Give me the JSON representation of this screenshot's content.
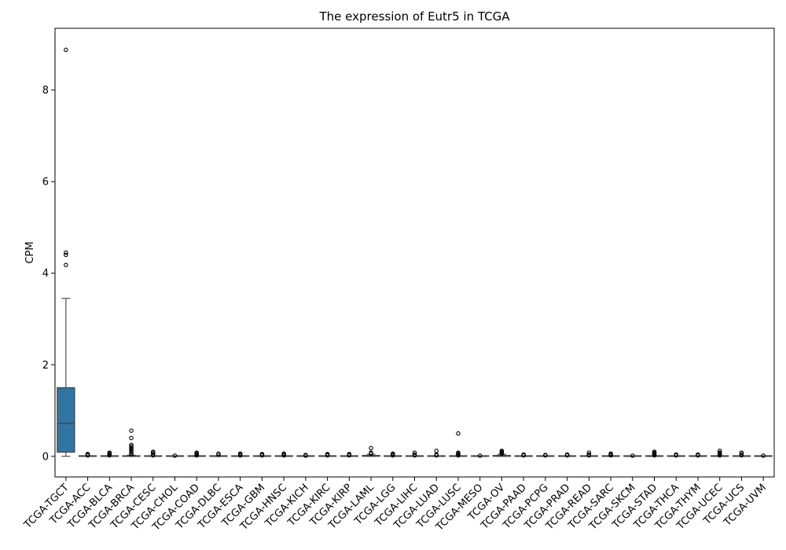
{
  "chart_data": {
    "type": "box",
    "title": "The expression of Eutr5 in TCGA",
    "xlabel": "",
    "ylabel": "CPM",
    "ylim": [
      -0.45,
      9.35
    ],
    "yticks": [
      0,
      2,
      4,
      6,
      8
    ],
    "grid": false,
    "box_color": "#3274a1",
    "categories": [
      "TCGA-TGCT",
      "TCGA-ACC",
      "TCGA-BLCA",
      "TCGA-BRCA",
      "TCGA-CESC",
      "TCGA-CHOL",
      "TCGA-COAD",
      "TCGA-DLBC",
      "TCGA-ESCA",
      "TCGA-GBM",
      "TCGA-HNSC",
      "TCGA-KICH",
      "TCGA-KIRC",
      "TCGA-KIRP",
      "TCGA-LAML",
      "TCGA-LGG",
      "TCGA-LIHC",
      "TCGA-LUAD",
      "TCGA-LUSC",
      "TCGA-MESO",
      "TCGA-OV",
      "TCGA-PAAD",
      "TCGA-PCPG",
      "TCGA-PRAD",
      "TCGA-READ",
      "TCGA-SARC",
      "TCGA-SKCM",
      "TCGA-STAD",
      "TCGA-THCA",
      "TCGA-THYM",
      "TCGA-UCEC",
      "TCGA-UCS",
      "TCGA-UVM"
    ],
    "boxes": [
      {
        "whislo": 0.0,
        "q1": 0.09,
        "med": 0.72,
        "q3": 1.5,
        "whishi": 3.45,
        "fliers": [
          4.18,
          4.4,
          4.45,
          8.88
        ]
      },
      {
        "whislo": 0.0,
        "q1": 0.0,
        "med": 0.0,
        "q3": 0.005,
        "whishi": 0.012,
        "fliers": [
          0.02,
          0.03,
          0.04,
          0.05
        ]
      },
      {
        "whislo": 0.0,
        "q1": 0.0,
        "med": 0.0,
        "q3": 0.005,
        "whishi": 0.012,
        "fliers": [
          0.02,
          0.04,
          0.06,
          0.08
        ]
      },
      {
        "whislo": 0.0,
        "q1": 0.0,
        "med": 0.0,
        "q3": 0.01,
        "whishi": 0.025,
        "fliers": [
          0.04,
          0.07,
          0.1,
          0.13,
          0.16,
          0.19,
          0.22,
          0.25,
          0.4,
          0.56
        ]
      },
      {
        "whislo": 0.0,
        "q1": 0.0,
        "med": 0.0,
        "q3": 0.005,
        "whishi": 0.012,
        "fliers": [
          0.02,
          0.05,
          0.08,
          0.1
        ]
      },
      {
        "whislo": 0.0,
        "q1": 0.0,
        "med": 0.0,
        "q3": 0.003,
        "whishi": 0.006,
        "fliers": [
          0.015
        ]
      },
      {
        "whislo": 0.0,
        "q1": 0.0,
        "med": 0.0,
        "q3": 0.005,
        "whishi": 0.012,
        "fliers": [
          0.02,
          0.04,
          0.06,
          0.08
        ]
      },
      {
        "whislo": 0.0,
        "q1": 0.0,
        "med": 0.0,
        "q3": 0.005,
        "whishi": 0.012,
        "fliers": [
          0.03,
          0.06
        ]
      },
      {
        "whislo": 0.0,
        "q1": 0.0,
        "med": 0.0,
        "q3": 0.005,
        "whishi": 0.012,
        "fliers": [
          0.02,
          0.04,
          0.06
        ]
      },
      {
        "whislo": 0.0,
        "q1": 0.0,
        "med": 0.0,
        "q3": 0.005,
        "whishi": 0.012,
        "fliers": [
          0.02,
          0.04,
          0.05
        ]
      },
      {
        "whislo": 0.0,
        "q1": 0.0,
        "med": 0.0,
        "q3": 0.005,
        "whishi": 0.012,
        "fliers": [
          0.02,
          0.04,
          0.06
        ]
      },
      {
        "whislo": 0.0,
        "q1": 0.0,
        "med": 0.0,
        "q3": 0.003,
        "whishi": 0.006,
        "fliers": [
          0.015,
          0.03
        ]
      },
      {
        "whislo": 0.0,
        "q1": 0.0,
        "med": 0.0,
        "q3": 0.005,
        "whishi": 0.012,
        "fliers": [
          0.02,
          0.04,
          0.05
        ]
      },
      {
        "whislo": 0.0,
        "q1": 0.0,
        "med": 0.0,
        "q3": 0.005,
        "whishi": 0.012,
        "fliers": [
          0.02,
          0.04,
          0.05
        ]
      },
      {
        "whislo": 0.0,
        "q1": 0.0,
        "med": 0.005,
        "q3": 0.02,
        "whishi": 0.045,
        "fliers": [
          0.06,
          0.08,
          0.18
        ]
      },
      {
        "whislo": 0.0,
        "q1": 0.0,
        "med": 0.0,
        "q3": 0.005,
        "whishi": 0.012,
        "fliers": [
          0.02,
          0.04,
          0.06
        ]
      },
      {
        "whislo": 0.0,
        "q1": 0.0,
        "med": 0.0,
        "q3": 0.005,
        "whishi": 0.012,
        "fliers": [
          0.02,
          0.04,
          0.08
        ]
      },
      {
        "whislo": 0.0,
        "q1": 0.0,
        "med": 0.0,
        "q3": 0.005,
        "whishi": 0.012,
        "fliers": [
          0.02,
          0.04,
          0.12
        ]
      },
      {
        "whislo": 0.0,
        "q1": 0.0,
        "med": 0.0,
        "q3": 0.005,
        "whishi": 0.012,
        "fliers": [
          0.02,
          0.04,
          0.06,
          0.08,
          0.5
        ]
      },
      {
        "whislo": 0.0,
        "q1": 0.0,
        "med": 0.0,
        "q3": 0.003,
        "whishi": 0.006,
        "fliers": [
          0.015
        ]
      },
      {
        "whislo": 0.0,
        "q1": 0.0,
        "med": 0.005,
        "q3": 0.02,
        "whishi": 0.045,
        "fliers": [
          0.06,
          0.08,
          0.1,
          0.12
        ]
      },
      {
        "whislo": 0.0,
        "q1": 0.0,
        "med": 0.0,
        "q3": 0.005,
        "whishi": 0.012,
        "fliers": [
          0.02,
          0.03,
          0.04
        ]
      },
      {
        "whislo": 0.0,
        "q1": 0.0,
        "med": 0.0,
        "q3": 0.005,
        "whishi": 0.012,
        "fliers": [
          0.02,
          0.03
        ]
      },
      {
        "whislo": 0.0,
        "q1": 0.0,
        "med": 0.0,
        "q3": 0.005,
        "whishi": 0.012,
        "fliers": [
          0.02,
          0.03,
          0.04
        ]
      },
      {
        "whislo": 0.0,
        "q1": 0.0,
        "med": 0.0,
        "q3": 0.005,
        "whishi": 0.012,
        "fliers": [
          0.02,
          0.04,
          0.08
        ]
      },
      {
        "whislo": 0.0,
        "q1": 0.0,
        "med": 0.0,
        "q3": 0.005,
        "whishi": 0.012,
        "fliers": [
          0.02,
          0.04,
          0.06
        ]
      },
      {
        "whislo": 0.0,
        "q1": 0.0,
        "med": 0.0,
        "q3": 0.003,
        "whishi": 0.006,
        "fliers": [
          0.015
        ]
      },
      {
        "whislo": 0.0,
        "q1": 0.0,
        "med": 0.0,
        "q3": 0.005,
        "whishi": 0.012,
        "fliers": [
          0.02,
          0.04,
          0.06,
          0.08,
          0.1
        ]
      },
      {
        "whislo": 0.0,
        "q1": 0.0,
        "med": 0.0,
        "q3": 0.005,
        "whishi": 0.012,
        "fliers": [
          0.02,
          0.03,
          0.04
        ]
      },
      {
        "whislo": 0.0,
        "q1": 0.0,
        "med": 0.0,
        "q3": 0.005,
        "whishi": 0.012,
        "fliers": [
          0.02,
          0.03,
          0.04
        ]
      },
      {
        "whislo": 0.0,
        "q1": 0.0,
        "med": 0.0,
        "q3": 0.005,
        "whishi": 0.012,
        "fliers": [
          0.02,
          0.04,
          0.06,
          0.08,
          0.12
        ]
      },
      {
        "whislo": 0.0,
        "q1": 0.0,
        "med": 0.0,
        "q3": 0.005,
        "whishi": 0.012,
        "fliers": [
          0.02,
          0.05,
          0.08
        ]
      },
      {
        "whislo": 0.0,
        "q1": 0.0,
        "med": 0.0,
        "q3": 0.003,
        "whishi": 0.006,
        "fliers": [
          0.015
        ]
      }
    ]
  }
}
